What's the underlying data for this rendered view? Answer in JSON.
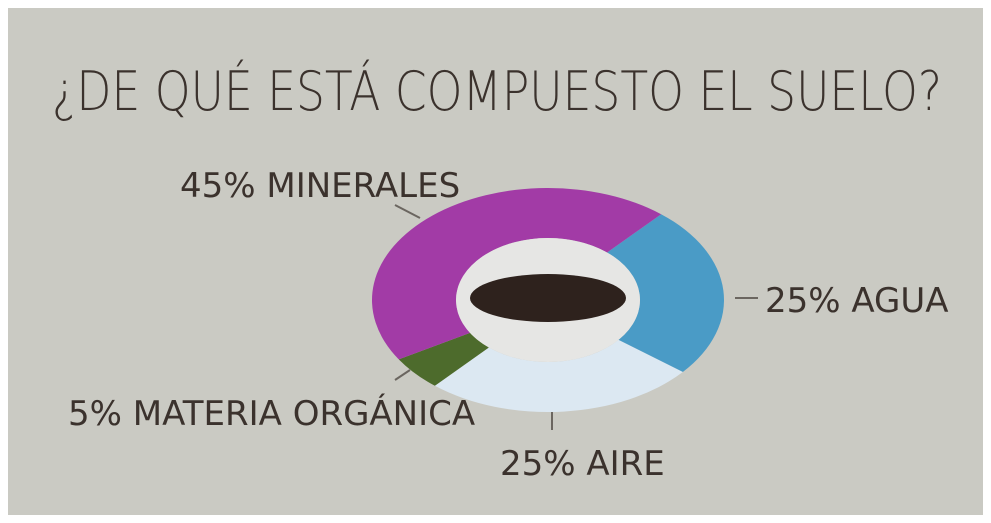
{
  "chart_data": {
    "type": "donut",
    "title": "¿DE QUÉ ESTÁ COMPUESTO EL SUELO?",
    "categories": [
      "AGUA",
      "AIRE",
      "MATERIA ORGÁNICA",
      "MINERALES"
    ],
    "values": [
      25,
      25,
      5,
      45
    ],
    "value_labels": [
      "25%",
      "25%",
      "5%",
      "45%"
    ],
    "colors": [
      "#4a9bc6",
      "#dce8f2",
      "#4d6b2c",
      "#a23ba6"
    ]
  }
}
